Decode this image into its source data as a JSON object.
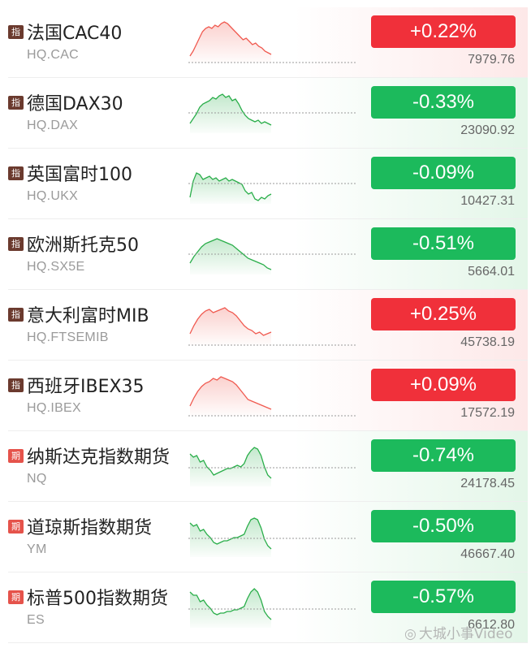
{
  "rows": [
    {
      "badge": "指",
      "kind": "idx",
      "name": "法国CAC40",
      "code": "HQ.CAC",
      "change": "+0.22%",
      "price": "7979.76",
      "dir": "up",
      "trend": [
        50,
        44,
        36,
        28,
        20,
        16,
        14,
        16,
        12,
        14,
        10,
        8,
        10,
        14,
        18,
        22,
        26,
        30,
        28,
        32,
        36,
        34,
        38,
        40,
        44,
        46,
        48
      ]
    },
    {
      "badge": "指",
      "kind": "idx",
      "name": "德国DAX30",
      "code": "HQ.DAX",
      "change": "-0.33%",
      "price": "23090.92",
      "dir": "down",
      "trend": [
        46,
        40,
        34,
        26,
        22,
        20,
        18,
        14,
        16,
        12,
        10,
        14,
        12,
        18,
        16,
        22,
        30,
        36,
        40,
        42,
        44,
        42,
        46,
        44,
        46,
        48
      ]
    },
    {
      "badge": "指",
      "kind": "idx",
      "name": "英国富时100",
      "code": "HQ.UKX",
      "change": "-0.09%",
      "price": "10427.31",
      "dir": "down",
      "trend": [
        50,
        30,
        20,
        22,
        28,
        26,
        24,
        28,
        26,
        30,
        28,
        26,
        30,
        28,
        30,
        32,
        34,
        42,
        46,
        44,
        52,
        54,
        50,
        52,
        48,
        46
      ]
    },
    {
      "badge": "指",
      "kind": "idx",
      "name": "欧洲斯托克50",
      "code": "HQ.SX5E",
      "change": "-0.51%",
      "price": "5664.01",
      "dir": "down",
      "trend": [
        44,
        36,
        30,
        24,
        20,
        18,
        16,
        14,
        16,
        18,
        20,
        22,
        26,
        30,
        34,
        38,
        40,
        42,
        44,
        46,
        50,
        52
      ]
    },
    {
      "badge": "指",
      "kind": "idx",
      "name": "意大利富时MIB",
      "code": "HQ.FTSEMIB",
      "change": "+0.25%",
      "price": "45738.19",
      "dir": "up",
      "trend": [
        44,
        34,
        26,
        20,
        16,
        14,
        18,
        16,
        14,
        12,
        16,
        18,
        22,
        28,
        34,
        38,
        40,
        44,
        42,
        46,
        44,
        42
      ]
    },
    {
      "badge": "指",
      "kind": "idx",
      "name": "西班牙IBEX35",
      "code": "HQ.IBEX",
      "change": "+0.09%",
      "price": "17572.19",
      "dir": "up",
      "trend": [
        46,
        36,
        28,
        22,
        18,
        16,
        12,
        14,
        10,
        12,
        14,
        16,
        20,
        26,
        32,
        38,
        40,
        42,
        44,
        46,
        48,
        50
      ]
    },
    {
      "badge": "期",
      "kind": "fut",
      "name": "纳斯达克指数期货",
      "code": "NQ",
      "change": "-0.74%",
      "price": "24178.45",
      "dir": "down",
      "trend": [
        18,
        22,
        20,
        28,
        26,
        34,
        38,
        44,
        42,
        40,
        38,
        36,
        36,
        34,
        32,
        34,
        30,
        20,
        14,
        10,
        12,
        20,
        34,
        44,
        48
      ]
    },
    {
      "badge": "期",
      "kind": "fut",
      "name": "道琼斯指数期货",
      "code": "YM",
      "change": "-0.50%",
      "price": "46667.40",
      "dir": "down",
      "trend": [
        16,
        20,
        18,
        26,
        24,
        30,
        34,
        40,
        42,
        40,
        38,
        38,
        36,
        34,
        34,
        32,
        30,
        20,
        12,
        10,
        12,
        22,
        36,
        44,
        48
      ]
    },
    {
      "badge": "期",
      "kind": "fut",
      "name": "标普500指数期货",
      "code": "ES",
      "change": "-0.57%",
      "price": "6612.80",
      "dir": "down",
      "trend": [
        14,
        18,
        18,
        26,
        24,
        30,
        34,
        40,
        42,
        40,
        40,
        38,
        38,
        36,
        36,
        34,
        32,
        22,
        14,
        10,
        14,
        24,
        38,
        44,
        48
      ]
    }
  ],
  "colors": {
    "up": "#f0303a",
    "down": "#1cba5c",
    "line_up": "#f05a50",
    "line_down": "#2aae4a"
  },
  "watermark": {
    "icon": "weibo-icon",
    "text": "大城小事Video"
  }
}
